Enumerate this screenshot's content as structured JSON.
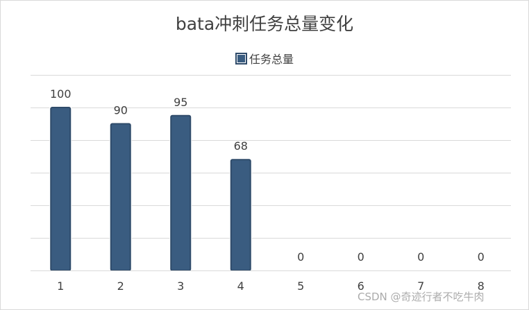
{
  "chart_data": {
    "type": "bar",
    "title": "bata冲刺任务总量变化",
    "categories": [
      "1",
      "2",
      "3",
      "4",
      "5",
      "6",
      "7",
      "8"
    ],
    "series": [
      {
        "name": "任务总量",
        "values": [
          100,
          90,
          95,
          68,
          0,
          0,
          0,
          0
        ]
      }
    ],
    "ylim": [
      0,
      120
    ],
    "gridline_step": 20,
    "y_tick_labels_shown": false,
    "legend_position": "top-center",
    "grid": true,
    "bar_color": "#3a5c80",
    "bar_border_color": "#2f4b6a"
  },
  "watermark": "CSDN @奇迹行者不吃牛肉"
}
